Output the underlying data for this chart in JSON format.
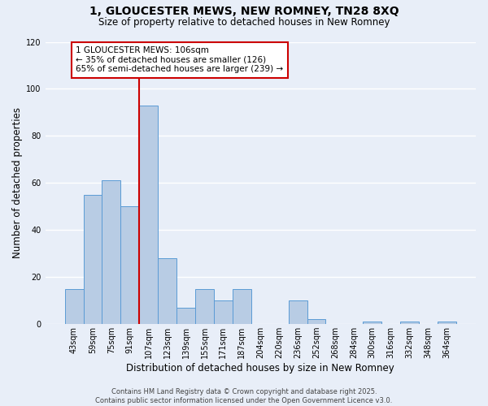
{
  "title_line1": "1, GLOUCESTER MEWS, NEW ROMNEY, TN28 8XQ",
  "title_line2": "Size of property relative to detached houses in New Romney",
  "xlabel": "Distribution of detached houses by size in New Romney",
  "ylabel": "Number of detached properties",
  "bar_labels": [
    "43sqm",
    "59sqm",
    "75sqm",
    "91sqm",
    "107sqm",
    "123sqm",
    "139sqm",
    "155sqm",
    "171sqm",
    "187sqm",
    "204sqm",
    "220sqm",
    "236sqm",
    "252sqm",
    "268sqm",
    "284sqm",
    "300sqm",
    "316sqm",
    "332sqm",
    "348sqm",
    "364sqm"
  ],
  "bar_values": [
    15,
    55,
    61,
    50,
    93,
    28,
    7,
    15,
    10,
    15,
    0,
    0,
    10,
    2,
    0,
    0,
    1,
    0,
    1,
    0,
    1
  ],
  "bar_color": "#b8cce4",
  "bar_edge_color": "#5b9bd5",
  "annotation_text": "1 GLOUCESTER MEWS: 106sqm\n← 35% of detached houses are smaller (126)\n65% of semi-detached houses are larger (239) →",
  "annotation_box_color": "#ffffff",
  "annotation_box_edge": "#cc0000",
  "vline_color": "#cc0000",
  "ylim": [
    0,
    120
  ],
  "yticks": [
    0,
    20,
    40,
    60,
    80,
    100,
    120
  ],
  "bg_color": "#e8eef8",
  "grid_color": "#ffffff",
  "footer_text": "Contains HM Land Registry data © Crown copyright and database right 2025.\nContains public sector information licensed under the Open Government Licence v3.0.",
  "title_fontsize": 10,
  "subtitle_fontsize": 8.5,
  "axis_label_fontsize": 8.5,
  "tick_fontsize": 7,
  "annotation_fontsize": 7.5,
  "footer_fontsize": 6
}
